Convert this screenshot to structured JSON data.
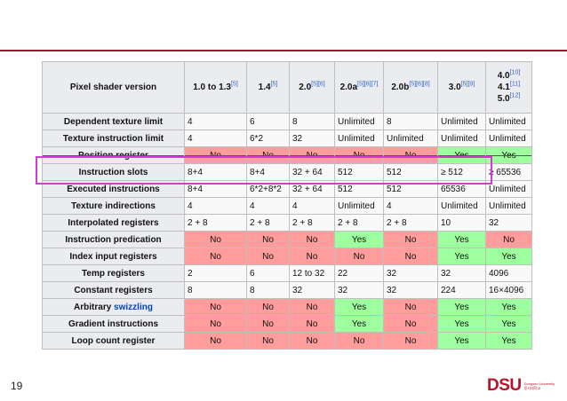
{
  "page_number": "19",
  "logo": {
    "text": "DSU",
    "line1": "Dongseo University",
    "line2": "동서대학교"
  },
  "table": {
    "header_label": "Pixel shader version",
    "columns": [
      {
        "lines": [
          {
            "text": "1.0 to 1.3",
            "sup": "[5]"
          }
        ]
      },
      {
        "lines": [
          {
            "text": "1.4",
            "sup": "[5]"
          }
        ]
      },
      {
        "lines": [
          {
            "text": "2.0",
            "sup": "[5][6]"
          }
        ]
      },
      {
        "lines": [
          {
            "text": "2.0a",
            "sup": "[5][6][7]"
          }
        ]
      },
      {
        "lines": [
          {
            "text": "2.0b",
            "sup": "[5][6][8]"
          }
        ]
      },
      {
        "lines": [
          {
            "text": "3.0",
            "sup": "[5][9]"
          }
        ]
      },
      {
        "lines": [
          {
            "text": "4.0",
            "sup": "[10]"
          },
          {
            "text": "4.1",
            "sup": "[11]"
          },
          {
            "text": "5.0",
            "sup": "[12]"
          }
        ]
      }
    ],
    "rows": [
      {
        "label": "Dependent texture limit",
        "cells": [
          "4",
          "6",
          "8",
          "Unlimited",
          "8",
          "Unlimited",
          "Unlimited"
        ]
      },
      {
        "label": "Texture instruction limit",
        "cells": [
          "4",
          "6*2",
          "32",
          "Unlimited",
          "Unlimited",
          "Unlimited",
          "Unlimited"
        ]
      },
      {
        "label": "Position register",
        "cells": [
          "No",
          "No",
          "No",
          "No",
          "No",
          "Yes",
          "Yes"
        ]
      },
      {
        "label": "Instruction slots",
        "cells": [
          "8+4",
          "8+4",
          "32 + 64",
          "512",
          "512",
          "≥ 512",
          "≥ 65536"
        ]
      },
      {
        "label": "Executed instructions",
        "cells": [
          "8+4",
          "6*2+8*2",
          "32 + 64",
          "512",
          "512",
          "65536",
          "Unlimited"
        ]
      },
      {
        "label": "Texture indirections",
        "cells": [
          "4",
          "4",
          "4",
          "Unlimited",
          "4",
          "Unlimited",
          "Unlimited"
        ]
      },
      {
        "label": "Interpolated registers",
        "cells": [
          "2 + 8",
          "2 + 8",
          "2 + 8",
          "2 + 8",
          "2 + 8",
          "10",
          "32"
        ]
      },
      {
        "label": "Instruction predication",
        "cells": [
          "No",
          "No",
          "No",
          "Yes",
          "No",
          "Yes",
          "No"
        ]
      },
      {
        "label": "Index input registers",
        "cells": [
          "No",
          "No",
          "No",
          "No",
          "No",
          "Yes",
          "Yes"
        ]
      },
      {
        "label": "Temp registers",
        "cells": [
          "2",
          "6",
          "12 to 32",
          "22",
          "32",
          "32",
          "4096"
        ]
      },
      {
        "label": "Constant registers",
        "cells": [
          "8",
          "8",
          "32",
          "32",
          "32",
          "224",
          "16×4096"
        ]
      },
      {
        "label_prefix": "Arbitrary ",
        "label_link": "swizzling",
        "cells": [
          "No",
          "No",
          "No",
          "Yes",
          "No",
          "Yes",
          "Yes"
        ]
      },
      {
        "label": "Gradient instructions",
        "cells": [
          "No",
          "No",
          "No",
          "Yes",
          "No",
          "Yes",
          "Yes"
        ]
      },
      {
        "label": "Loop count register",
        "cells": [
          "No",
          "No",
          "No",
          "No",
          "No",
          "Yes",
          "Yes"
        ]
      }
    ]
  },
  "colors": {
    "no": "#ff9c9c",
    "yes": "#9dff9d",
    "highlight": "#d63bd6",
    "accent": "#9b1b2a"
  }
}
